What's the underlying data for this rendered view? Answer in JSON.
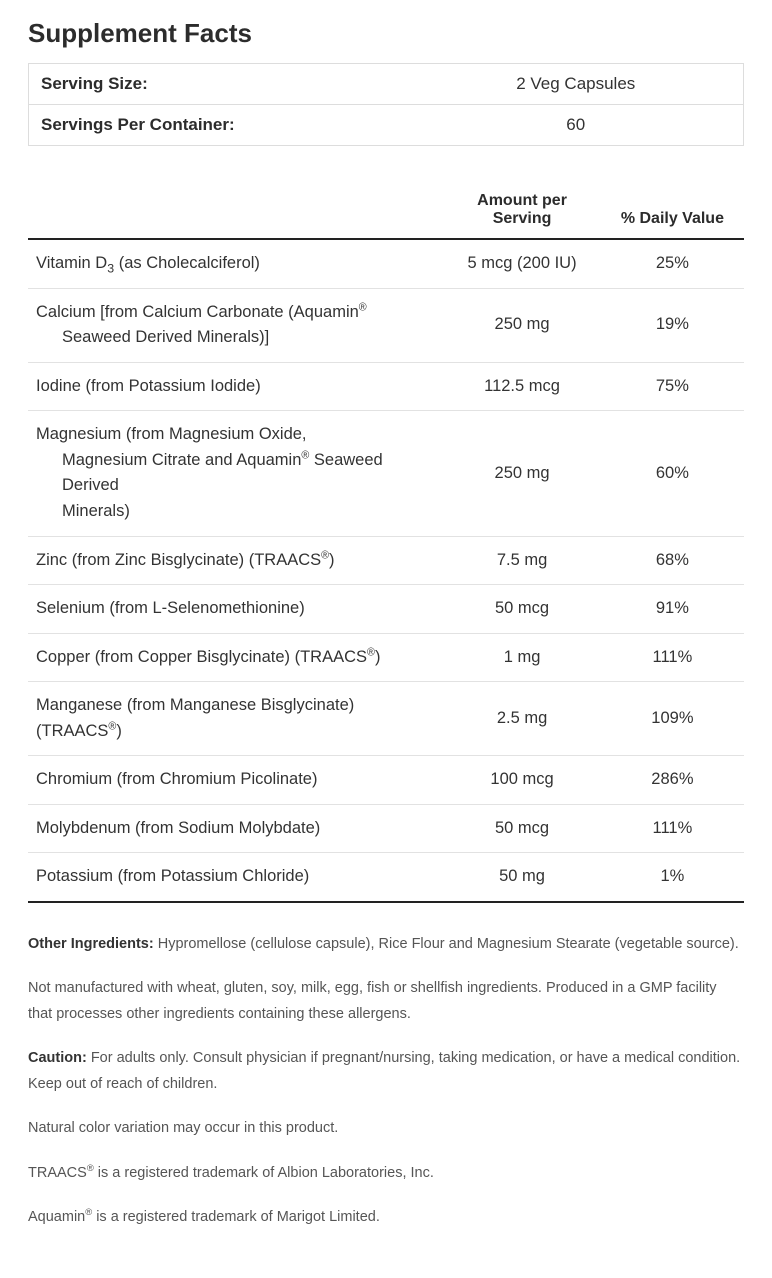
{
  "title": "Supplement Facts",
  "serving": {
    "size_label": "Serving Size:",
    "size_value": "2 Veg Capsules",
    "per_container_label": "Servings Per Container:",
    "per_container_value": "60"
  },
  "columns": {
    "name": "",
    "amount": "Amount per Serving",
    "dv": "% Daily Value"
  },
  "rows": [
    {
      "name_html": "Vitamin D<sub>3</sub> (as Cholecalciferol)",
      "amount": "5 mcg (200 IU)",
      "dv": "25%"
    },
    {
      "name_html": "Calcium [from Calcium Carbonate (Aquamin<sup>®</sup><span class=\"indent\">Seaweed Derived Minerals)]</span>",
      "amount": "250 mg",
      "dv": "19%"
    },
    {
      "name_html": "Iodine (from Potassium Iodide)",
      "amount": "112.5 mcg",
      "dv": "75%"
    },
    {
      "name_html": "Magnesium (from Magnesium Oxide,<span class=\"indent\">Magnesium Citrate and Aquamin<sup>®</sup> Seaweed Derived</span><span class=\"indent\">Minerals)</span>",
      "amount": "250 mg",
      "dv": "60%"
    },
    {
      "name_html": "Zinc (from Zinc Bisglycinate) (TRAACS<sup>®</sup>)",
      "amount": "7.5 mg",
      "dv": "68%"
    },
    {
      "name_html": "Selenium (from L-Selenomethionine)",
      "amount": "50 mcg",
      "dv": "91%"
    },
    {
      "name_html": "Copper (from Copper Bisglycinate) (TRAACS<sup>®</sup>)",
      "amount": "1 mg",
      "dv": "111%"
    },
    {
      "name_html": "Manganese (from Manganese Bisglycinate) (TRAACS<sup>®</sup>)",
      "amount": "2.5 mg",
      "dv": "109%"
    },
    {
      "name_html": "Chromium (from Chromium Picolinate)",
      "amount": "100 mcg",
      "dv": "286%"
    },
    {
      "name_html": "Molybdenum (from Sodium Molybdate)",
      "amount": "50 mcg",
      "dv": "111%"
    },
    {
      "name_html": "Potassium (from Potassium Chloride)",
      "amount": "50 mg",
      "dv": "1%"
    }
  ],
  "footer": {
    "other_ingredients_label": "Other Ingredients:",
    "other_ingredients_text": " Hypromellose (cellulose capsule), Rice Flour and Magnesium Stearate (vegetable source).",
    "allergen_text": "Not manufactured with wheat, gluten, soy, milk, egg, fish or shellfish ingredients. Produced in a GMP facility that processes other ingredients containing these allergens.",
    "caution_label": "Caution:",
    "caution_text": " For adults only. Consult physician if pregnant/nursing, taking medication, or have a medical condition. Keep out of reach of children.",
    "natural_text": "Natural color variation may occur in this product.",
    "traacs_html": "TRAACS<sup>®</sup> is a registered trademark of Albion Laboratories, Inc.",
    "aquamin_html": "Aquamin<sup>®</sup> is a registered trademark of Marigot Limited."
  },
  "styles": {
    "text_color": "#333333",
    "muted_text_color": "#555555",
    "heading_color": "#2c2c2c",
    "border_color": "#dddddd",
    "row_border_color": "#e2e2e2",
    "rule_color": "#222222",
    "background_color": "#ffffff",
    "title_fontsize": 26,
    "body_fontsize": 16.5,
    "footer_fontsize": 14.5
  }
}
